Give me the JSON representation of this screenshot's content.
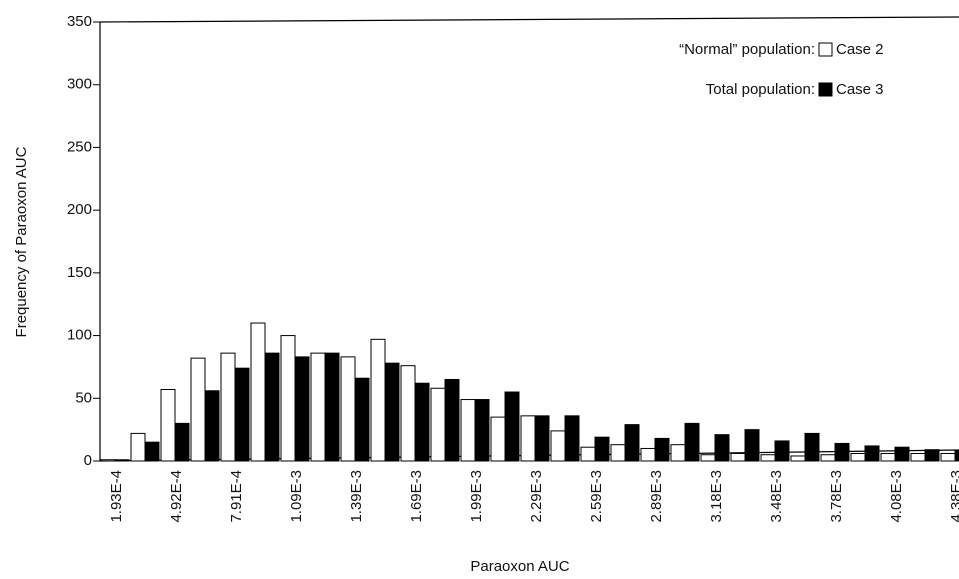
{
  "chart_data": {
    "type": "bar",
    "x_label": "Paraoxon AUC",
    "y_label": "Frequency of Paraoxon AUC",
    "categories": [
      "1.93E-4",
      null,
      "4.92E-4",
      null,
      "7.91E-4",
      null,
      "1.09E-3",
      null,
      "1.39E-3",
      null,
      "1.69E-3",
      null,
      "1.99E-3",
      null,
      "2.29E-3",
      null,
      "2.59E-3",
      null,
      "2.89E-3",
      null,
      "3.18E-3",
      null,
      "3.48E-3",
      null,
      "3.78E-3",
      null,
      "4.08E-3",
      null,
      "4.38E-3"
    ],
    "series": [
      {
        "name": "Case 2",
        "legend_prefix": "“Normal” population:",
        "color": "#ffffff",
        "values": [
          1,
          22,
          57,
          82,
          86,
          110,
          100,
          86,
          83,
          97,
          76,
          58,
          49,
          35,
          36,
          24,
          11,
          13,
          10,
          13,
          5,
          6,
          5,
          4,
          5,
          6,
          6,
          6,
          6
        ]
      },
      {
        "name": "Case 3",
        "legend_prefix": "Total population:",
        "color": "#000000",
        "values": [
          1,
          15,
          30,
          56,
          74,
          86,
          83,
          86,
          66,
          78,
          62,
          65,
          49,
          55,
          36,
          36,
          19,
          29,
          18,
          30,
          21,
          25,
          16,
          22,
          14,
          12,
          11,
          9,
          8
        ]
      }
    ],
    "ylim": [
      0,
      350
    ],
    "yticks": [
      0,
      50,
      100,
      150,
      200,
      250,
      300,
      350
    ],
    "grid": false
  }
}
